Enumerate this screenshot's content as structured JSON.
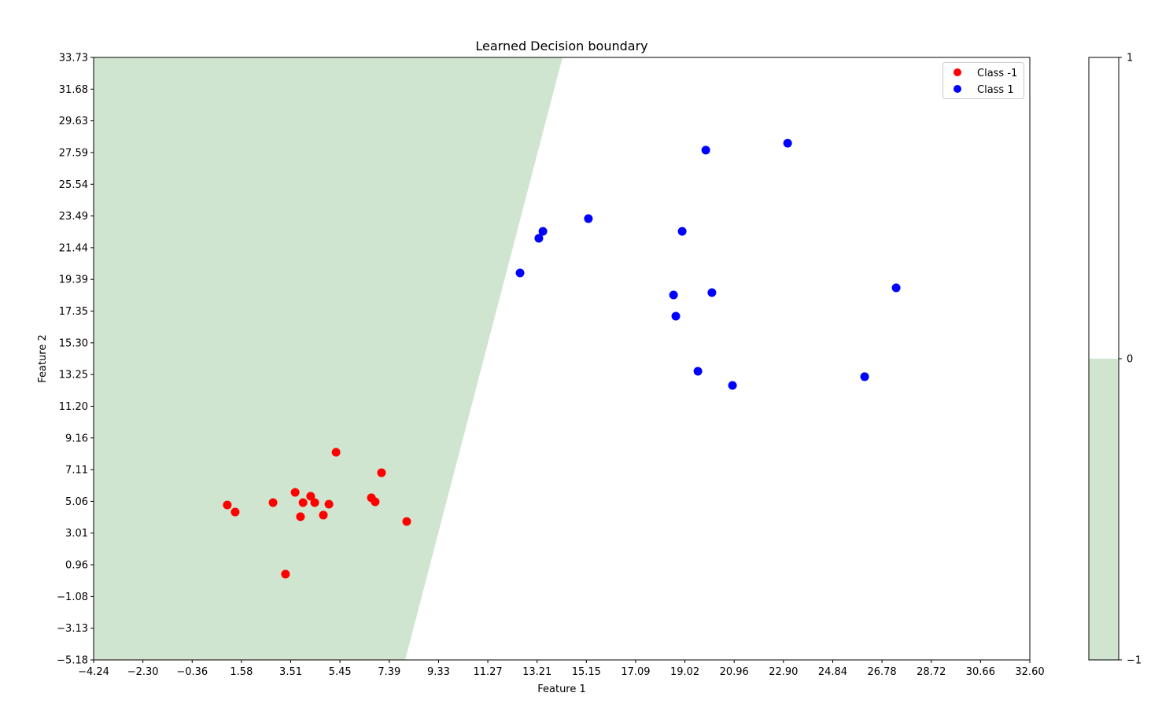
{
  "chart_data": {
    "type": "scatter",
    "title": "Learned Decision boundary",
    "xlabel": "Feature 1",
    "ylabel": "Feature 2",
    "xlim": [
      -4.24,
      32.6
    ],
    "ylim": [
      -5.18,
      33.73
    ],
    "xticks": [
      "−4.24",
      "−2.30",
      "−0.36",
      "1.58",
      "3.51",
      "5.45",
      "7.39",
      "9.33",
      "11.27",
      "13.21",
      "15.15",
      "17.09",
      "19.02",
      "20.96",
      "22.90",
      "24.84",
      "26.78",
      "28.72",
      "30.66",
      "32.60"
    ],
    "yticks": [
      "−5.18",
      "−3.13",
      "−1.08",
      "0.96",
      "3.01",
      "5.06",
      "7.11",
      "9.16",
      "11.20",
      "13.25",
      "15.30",
      "17.35",
      "19.39",
      "21.44",
      "23.49",
      "25.54",
      "27.59",
      "29.63",
      "31.68",
      "33.73"
    ],
    "grid": false,
    "legend_position": "top-right",
    "decision_boundary": {
      "region_class_minus1_color": "#cfe5cf",
      "region_class_1_color": "#ffffff",
      "line_points": [
        [
          14.21,
          33.73
        ],
        [
          8.02,
          -5.18
        ]
      ]
    },
    "series": [
      {
        "name": "Class -1",
        "color": "#ff0000",
        "points": [
          [
            1.02,
            4.83
          ],
          [
            1.33,
            4.37
          ],
          [
            2.82,
            4.98
          ],
          [
            3.69,
            5.64
          ],
          [
            4.0,
            4.98
          ],
          [
            3.9,
            4.07
          ],
          [
            4.3,
            5.39
          ],
          [
            4.46,
            4.98
          ],
          [
            4.8,
            4.17
          ],
          [
            5.02,
            4.88
          ],
          [
            5.3,
            8.23
          ],
          [
            6.69,
            5.29
          ],
          [
            6.84,
            5.03
          ],
          [
            7.09,
            6.91
          ],
          [
            8.08,
            3.76
          ],
          [
            3.31,
            0.36
          ]
        ]
      },
      {
        "name": "Class 1",
        "color": "#0000ff",
        "points": [
          [
            12.54,
            19.81
          ],
          [
            13.28,
            22.05
          ],
          [
            13.44,
            22.5
          ],
          [
            15.23,
            23.32
          ],
          [
            19.85,
            27.74
          ],
          [
            23.07,
            28.19
          ],
          [
            18.92,
            22.5
          ],
          [
            18.58,
            18.39
          ],
          [
            20.09,
            18.54
          ],
          [
            18.67,
            17.02
          ],
          [
            19.54,
            13.46
          ],
          [
            20.9,
            12.55
          ],
          [
            26.1,
            13.11
          ],
          [
            27.34,
            18.85
          ]
        ]
      }
    ],
    "colorbar": {
      "ticks": [
        "1",
        "0",
        "−1"
      ],
      "range": [
        -1,
        1
      ],
      "colors": [
        "#cfe5cf",
        "#ffffff"
      ]
    }
  }
}
